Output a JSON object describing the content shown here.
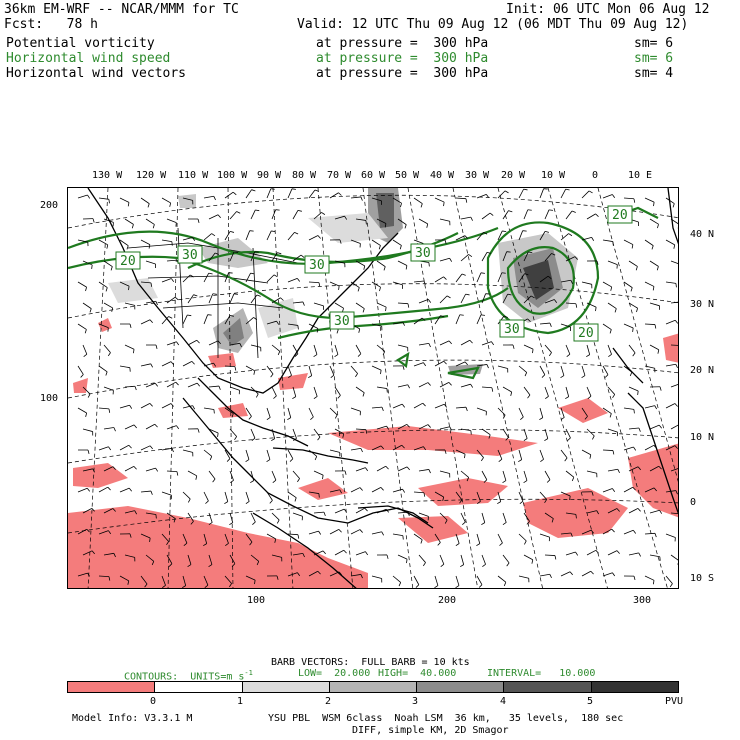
{
  "header": {
    "model": "36km EM-WRF -- NCAR/MMM for TC",
    "init": "Init: 06 UTC Mon 06 Aug 12",
    "fcst": "Fcst:   78 h",
    "valid": "Valid: 12 UTC Thu 09 Aug 12 (06 MDT Thu 09 Aug 12)"
  },
  "fields": [
    {
      "name": "Potential vorticity",
      "level": "at pressure =  300 hPa",
      "smooth": "sm= 6",
      "color": "#000000"
    },
    {
      "name": "Horizontal wind speed",
      "level": "at pressure =  300 hPa",
      "smooth": "sm= 6",
      "color": "#2e8b2e"
    },
    {
      "name": "Horizontal wind vectors",
      "level": "at pressure =  300 hPa",
      "smooth": "sm= 4",
      "color": "#000000"
    }
  ],
  "map": {
    "lon_labels": [
      "130 W",
      "120 W",
      "110 W",
      "100 W",
      "90 W",
      "80 W",
      "70 W",
      "60 W",
      "50 W",
      "40 W",
      "30 W",
      "20 W",
      "10 W",
      "0",
      "10 E"
    ],
    "lat_labels": [
      "40 N",
      "30 N",
      "20 N",
      "10 N",
      "0",
      "10 S"
    ],
    "y_grid_labels": [
      "200",
      "100"
    ],
    "x_grid_labels": [
      "100",
      "200",
      "300"
    ],
    "contour_labels": [
      "20",
      "30",
      "30",
      "30",
      "30",
      "30",
      "20",
      "20"
    ],
    "colors": {
      "pv_negative": "#f47c7c",
      "pv_shading": [
        "#e6e6e6",
        "#c8c8c8",
        "#a0a0a0",
        "#707070",
        "#404040"
      ],
      "isotach": "#1f7a1f"
    }
  },
  "legend": {
    "barb": "BARB VECTORS:  FULL BARB = 10 kts",
    "contours": "CONTOURS:  UNITS=m s",
    "units_exp": "-1",
    "low": "LOW=  20.000",
    "high": "HIGH=  40.000",
    "interval": "INTERVAL=   10.000"
  },
  "colorbar": {
    "ticks": [
      "0",
      "1",
      "2",
      "3",
      "4",
      "5"
    ],
    "unit": "PVU",
    "colors": [
      "#f47c7c",
      "#ffffff",
      "#dcdcdc",
      "#b4b4b4",
      "#8c8c8c",
      "#555555",
      "#333333"
    ]
  },
  "footer": {
    "model_info": "Model Info: V3.3.1 M",
    "physics": "YSU PBL  WSM 6class  Noah LSM  36 km,   35 levels,  180 sec",
    "diff": "DIFF, simple KM, 2D Smagor"
  }
}
